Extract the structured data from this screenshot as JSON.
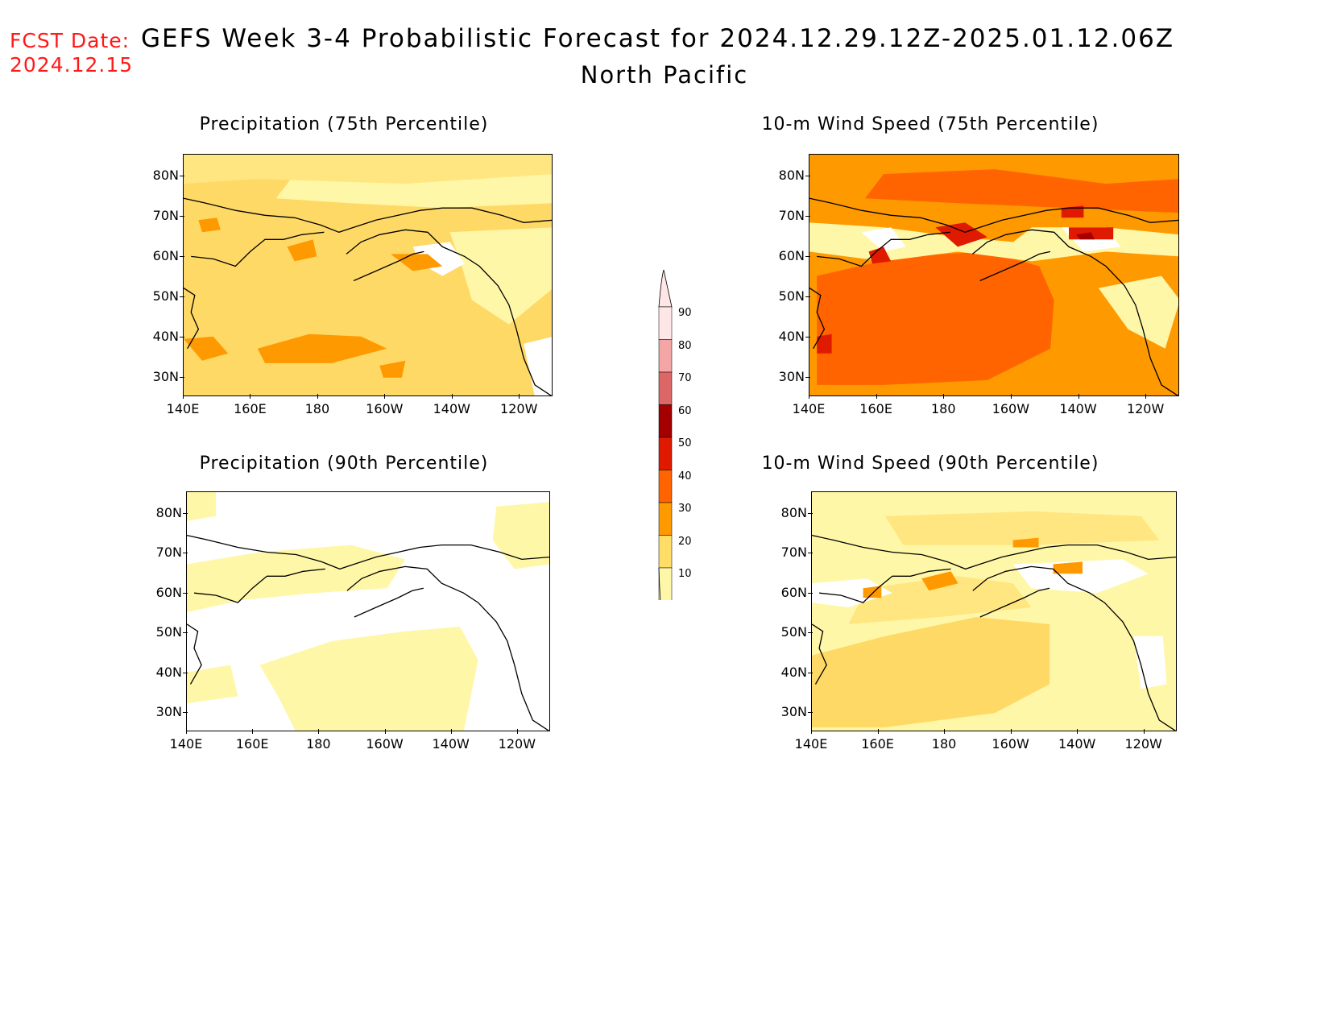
{
  "forecast_date": {
    "label": "FCST Date:",
    "value": "2024.12.15"
  },
  "title": "GEFS Week 3-4 Probabilistic Forecast for 2024.12.29.12Z-2025.01.12.06Z",
  "region": "North Pacific",
  "panels": [
    {
      "id": "precip75",
      "title": "Precipitation (75th Percentile)"
    },
    {
      "id": "wind75",
      "title": "10-m Wind Speed (75th Percentile)"
    },
    {
      "id": "precip90",
      "title": "Precipitation (90th Percentile)"
    },
    {
      "id": "wind90",
      "title": "10-m Wind Speed (90th Percentile)"
    }
  ],
  "lat_labels": [
    "80N",
    "70N",
    "60N",
    "50N",
    "40N",
    "30N"
  ],
  "lon_labels": [
    "140E",
    "160E",
    "180",
    "160W",
    "140W",
    "120W"
  ],
  "colorbar": {
    "levels": [
      "90",
      "80",
      "70",
      "60",
      "50",
      "40",
      "30",
      "20",
      "10"
    ],
    "colors": [
      "#ffe6e6",
      "#f4a5a5",
      "#dd6666",
      "#a50000",
      "#e01a00",
      "#ff6400",
      "#ff9900",
      "#ffdd66",
      "#fff7a8"
    ]
  },
  "palette": {
    "lightest": "#fff7a8",
    "light": "#ffe680",
    "mid": "#ffd966",
    "orange": "#ff9900",
    "dark_orange": "#ff6400",
    "red": "#e01a00",
    "dark_red": "#a50000"
  }
}
